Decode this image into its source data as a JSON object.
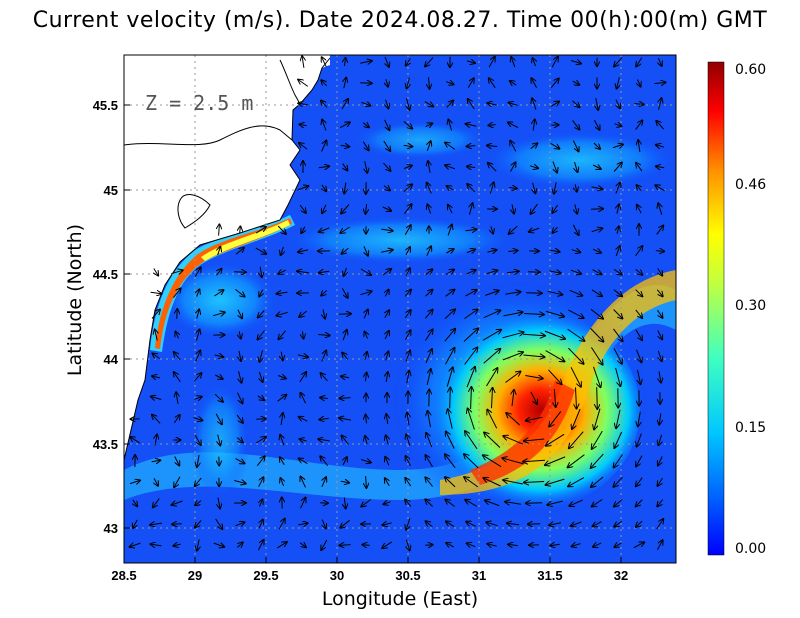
{
  "title": "Current velocity (m/s). Date 2024.08.27. Time 00(h):00(m) GMT",
  "depth_label": "Z = 2.5 m",
  "axes": {
    "xlabel": "Longitude (East)",
    "ylabel": "Latitude (North)",
    "xlim": [
      28.5,
      32.4
    ],
    "ylim": [
      42.8,
      45.8
    ],
    "xticks": [
      "28.5",
      "29",
      "29.5",
      "30",
      "30.5",
      "31",
      "31.5",
      "32"
    ],
    "yticks": [
      "43",
      "43.5",
      "44",
      "44.5",
      "45",
      "45.5"
    ],
    "grid": "dotted"
  },
  "colorbar": {
    "labels": [
      "0.60",
      "0.46",
      "0.30",
      "0.15",
      "0.00"
    ],
    "range": [
      0.0,
      0.6
    ],
    "colors": [
      "#0000ff",
      "#0064ff",
      "#00c8ff",
      "#40ffc0",
      "#c0ff40",
      "#ffff00",
      "#ff9000",
      "#ff0000",
      "#900000"
    ]
  },
  "chart_data": {
    "type": "heatmap",
    "variable": "Current velocity (m/s)",
    "date": "2024.08.27",
    "time": "00(h):00(m) GMT",
    "depth": "2.5 m",
    "features": [
      {
        "kind": "anticyclonic eddy",
        "center": [
          31.3,
          43.8
        ],
        "max_speed": 0.6
      },
      {
        "kind": "coastal jet",
        "from": [
          29.7,
          44.85
        ],
        "to": [
          28.7,
          44.1
        ],
        "max_speed": 0.6
      },
      {
        "kind": "eastern meander",
        "center": [
          31.8,
          44.3
        ],
        "max_speed": 0.4
      }
    ]
  }
}
